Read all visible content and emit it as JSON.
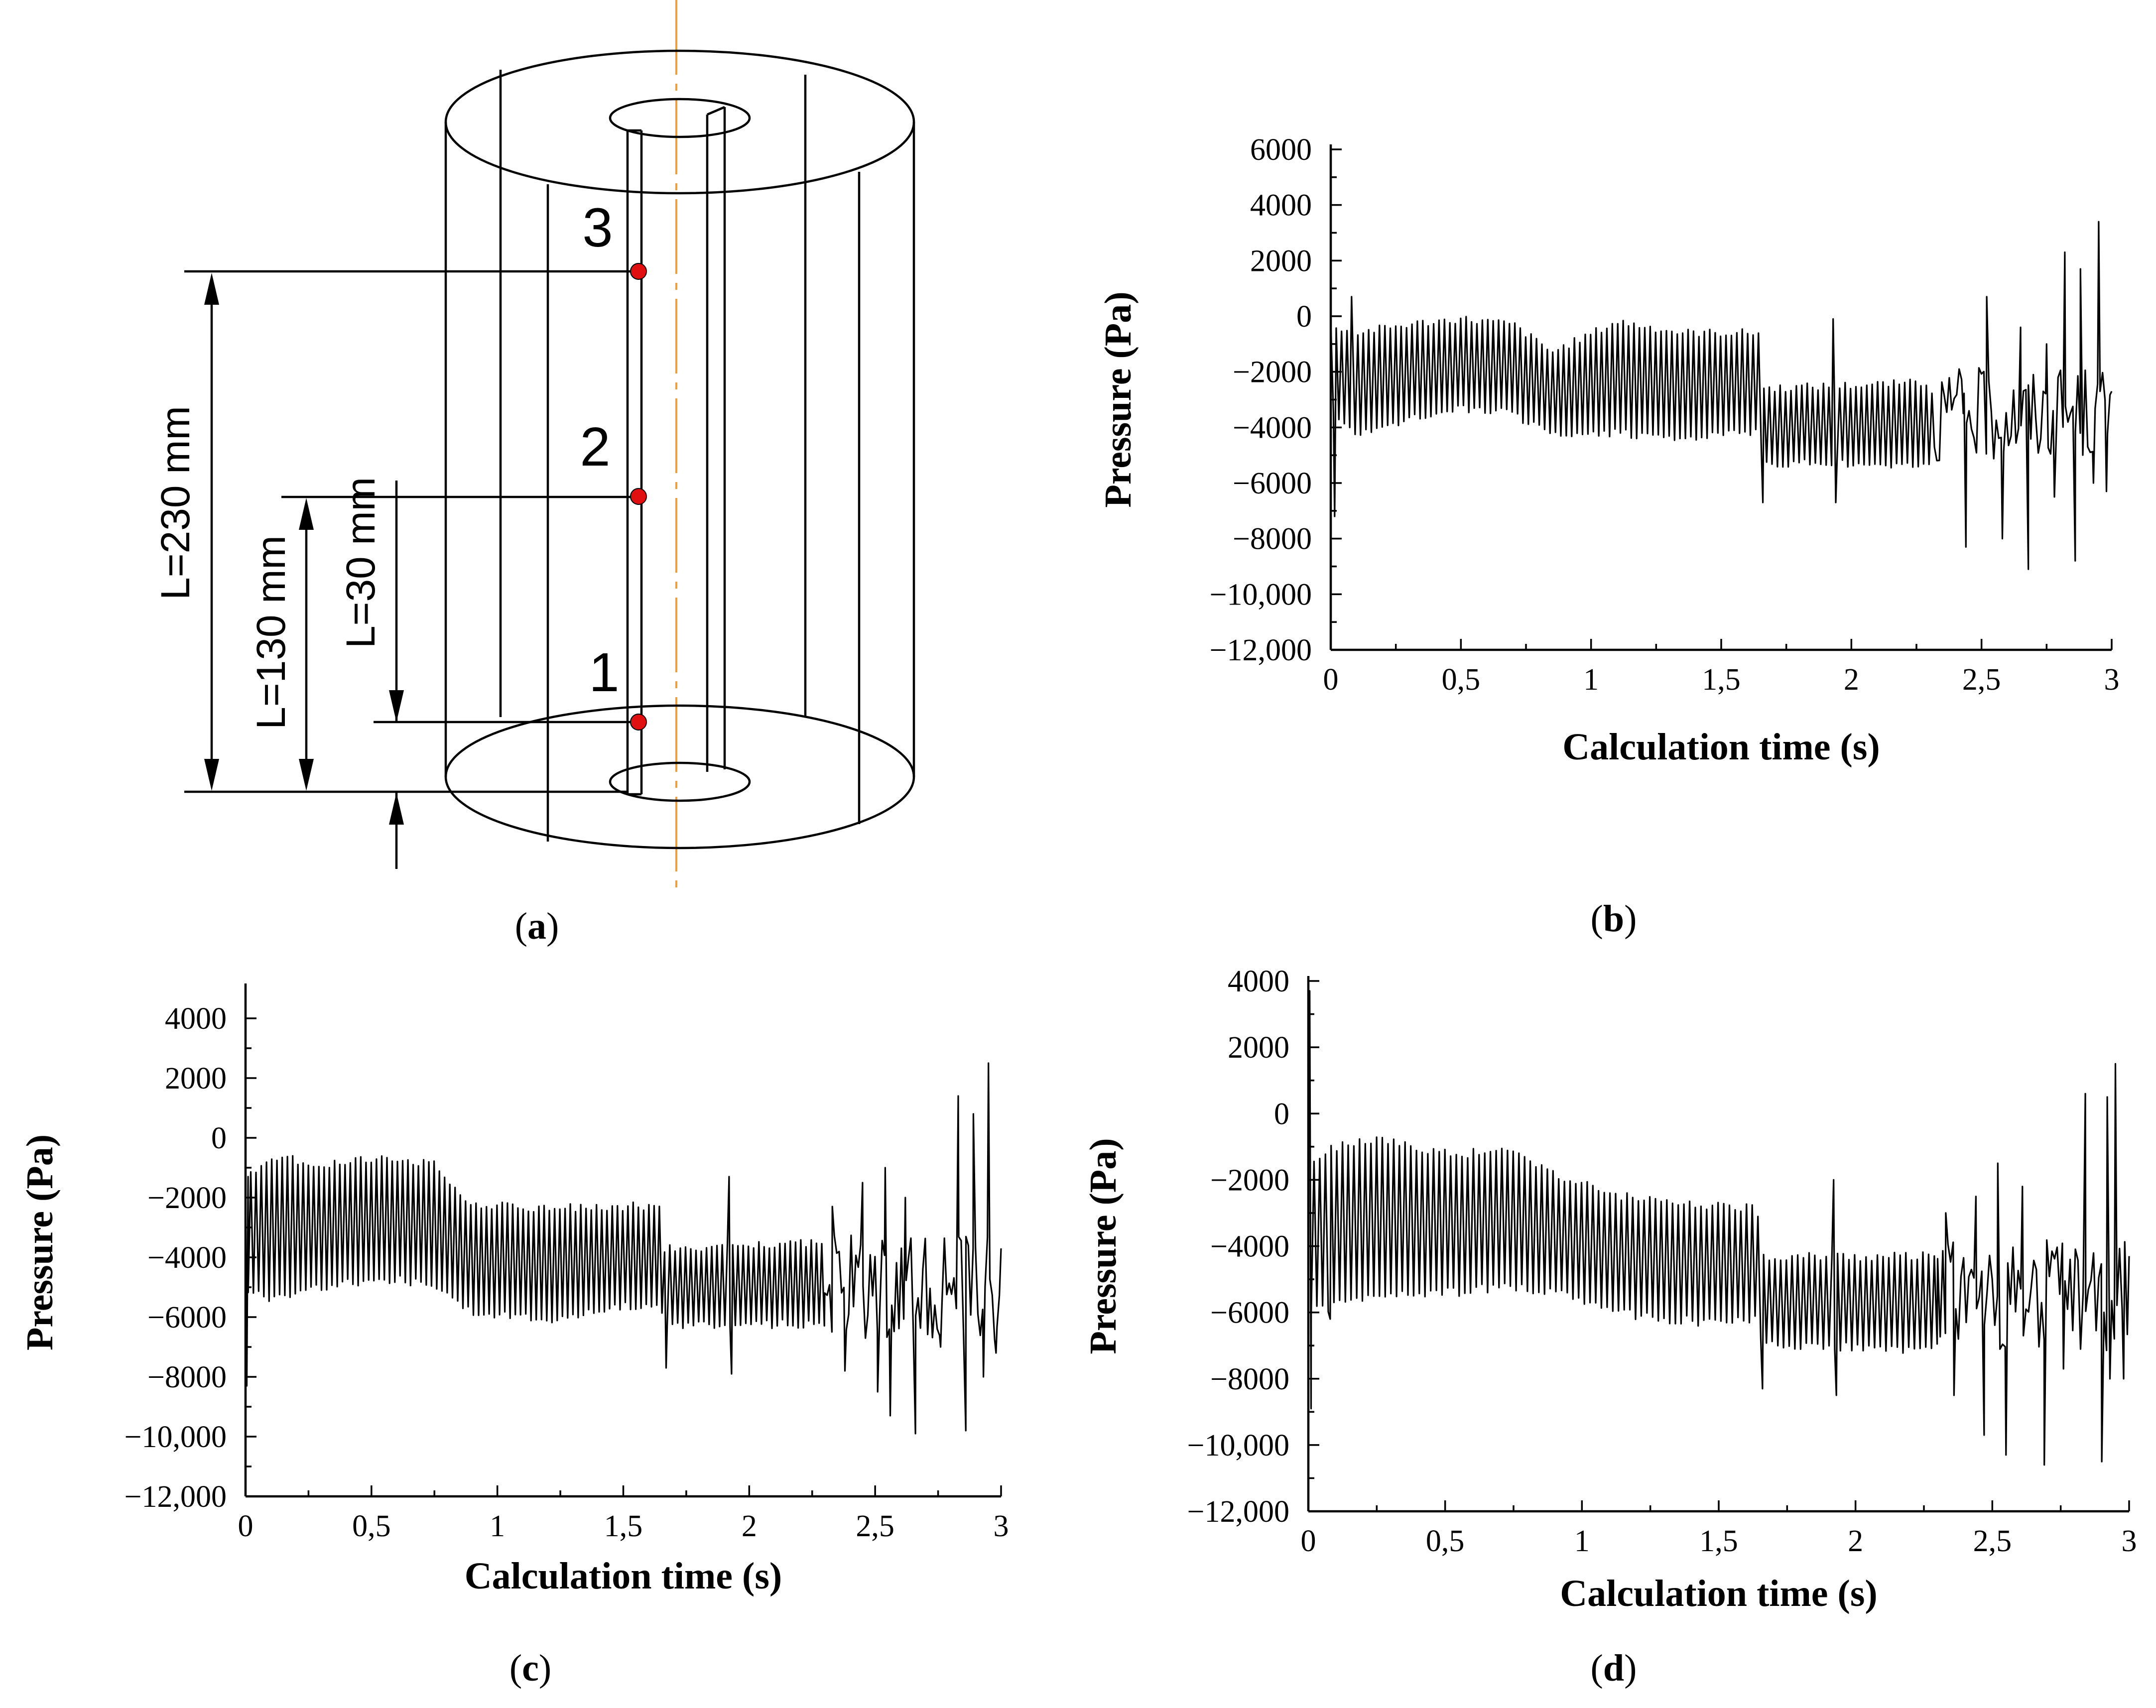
{
  "figure_a": {
    "caption_open": "(",
    "caption_letter": "a",
    "caption_close": ")",
    "point_labels": [
      "1",
      "2",
      "3"
    ],
    "dimension_labels": [
      "L=230 mm",
      "L=130 mm",
      "L=30 mm"
    ],
    "point_color": "#e01010",
    "axis_color": "#e8a040"
  },
  "chart_data": [
    {
      "id": "b",
      "type": "line",
      "caption": "b",
      "xlabel": "Calculation  time (s)",
      "ylabel": "Pressure (Pa)",
      "xlim": [
        0,
        3
      ],
      "ylim": [
        -12000,
        6000
      ],
      "xticks": [
        0,
        0.5,
        1,
        1.5,
        2,
        2.5,
        3
      ],
      "xticklabels": [
        "0",
        "0,5",
        "1",
        "1,5",
        "2",
        "2,5",
        "3"
      ],
      "yticks": [
        -12000,
        -10000,
        -8000,
        -6000,
        -4000,
        -2000,
        0,
        2000,
        4000,
        6000
      ],
      "yticklabels": [
        "−12,000",
        "−10,000",
        "−8000",
        "−6000",
        "−4000",
        "−2000",
        "0",
        "2000",
        "4000",
        "6000"
      ],
      "envelope": [
        {
          "t": 0.0,
          "hi": -300,
          "lo": -3500
        },
        {
          "t": 0.1,
          "hi": -600,
          "lo": -4300
        },
        {
          "t": 0.3,
          "hi": -300,
          "lo": -3700
        },
        {
          "t": 0.5,
          "hi": -100,
          "lo": -3300
        },
        {
          "t": 0.7,
          "hi": -300,
          "lo": -3500
        },
        {
          "t": 0.85,
          "hi": -1300,
          "lo": -4300
        },
        {
          "t": 1.1,
          "hi": -200,
          "lo": -4200
        },
        {
          "t": 1.35,
          "hi": -600,
          "lo": -4400
        },
        {
          "t": 1.65,
          "hi": -600,
          "lo": -4100
        },
        {
          "t": 1.66,
          "hi": -2600,
          "lo": -5300
        },
        {
          "t": 2.3,
          "hi": -2400,
          "lo": -5300
        }
      ],
      "noise_start": 2.3,
      "noise_range": [
        -5200,
        -1800
      ],
      "spikes": [
        {
          "t": 0.015,
          "v": -7200
        },
        {
          "t": 0.08,
          "v": 700
        },
        {
          "t": 1.66,
          "v": -6700
        },
        {
          "t": 1.93,
          "v": -100
        },
        {
          "t": 1.94,
          "v": -6700
        },
        {
          "t": 2.43,
          "v": -3500
        },
        {
          "t": 2.44,
          "v": -8300
        },
        {
          "t": 2.52,
          "v": 700
        },
        {
          "t": 2.58,
          "v": -8000
        },
        {
          "t": 2.65,
          "v": -400
        },
        {
          "t": 2.68,
          "v": -9100
        },
        {
          "t": 2.75,
          "v": -1000
        },
        {
          "t": 2.78,
          "v": -6500
        },
        {
          "t": 2.82,
          "v": 2300
        },
        {
          "t": 2.86,
          "v": -8800
        },
        {
          "t": 2.88,
          "v": 1700
        },
        {
          "t": 2.93,
          "v": -6000
        },
        {
          "t": 2.95,
          "v": 3400
        },
        {
          "t": 2.98,
          "v": -6300
        },
        {
          "t": 3.0,
          "v": -2700
        }
      ]
    },
    {
      "id": "c",
      "type": "line",
      "caption": "c",
      "xlabel": "Calculation  time (s)",
      "ylabel": "Pressure (Pa)",
      "xlim": [
        0,
        3
      ],
      "ylim": [
        -12000,
        5000
      ],
      "xticks": [
        0,
        0.5,
        1,
        1.5,
        2,
        2.5,
        3
      ],
      "xticklabels": [
        "0",
        "0,5",
        "1",
        "1,5",
        "2",
        "2,5",
        "3"
      ],
      "yticks": [
        -12000,
        -10000,
        -8000,
        -6000,
        -4000,
        -2000,
        0,
        2000,
        4000
      ],
      "yticklabels": [
        "−12,000",
        "−10,000",
        "−8000",
        "−6000",
        "−4000",
        "−2000",
        "0",
        "2000",
        "4000"
      ],
      "envelope": [
        {
          "t": 0.0,
          "hi": -1400,
          "lo": -5000
        },
        {
          "t": 0.1,
          "hi": -600,
          "lo": -5400
        },
        {
          "t": 0.3,
          "hi": -900,
          "lo": -5000
        },
        {
          "t": 0.55,
          "hi": -700,
          "lo": -4700
        },
        {
          "t": 0.75,
          "hi": -900,
          "lo": -4900
        },
        {
          "t": 0.9,
          "hi": -2200,
          "lo": -5800
        },
        {
          "t": 1.2,
          "hi": -2400,
          "lo": -6100
        },
        {
          "t": 1.45,
          "hi": -2300,
          "lo": -5700
        },
        {
          "t": 1.65,
          "hi": -2300,
          "lo": -5500
        },
        {
          "t": 1.66,
          "hi": -3700,
          "lo": -6300
        },
        {
          "t": 2.3,
          "hi": -3500,
          "lo": -6200
        }
      ],
      "noise_start": 2.3,
      "noise_range": [
        -6800,
        -3200
      ],
      "spikes": [
        {
          "t": 0.005,
          "v": -8300
        },
        {
          "t": 0.01,
          "v": -1300
        },
        {
          "t": 1.67,
          "v": -7700
        },
        {
          "t": 1.92,
          "v": -1300
        },
        {
          "t": 1.93,
          "v": -7900
        },
        {
          "t": 2.33,
          "v": -2300
        },
        {
          "t": 2.38,
          "v": -7800
        },
        {
          "t": 2.45,
          "v": -1500
        },
        {
          "t": 2.51,
          "v": -8500
        },
        {
          "t": 2.54,
          "v": -1000
        },
        {
          "t": 2.56,
          "v": -9300
        },
        {
          "t": 2.62,
          "v": -2000
        },
        {
          "t": 2.66,
          "v": -9900
        },
        {
          "t": 2.76,
          "v": -7000
        },
        {
          "t": 2.83,
          "v": 1400
        },
        {
          "t": 2.86,
          "v": -9800
        },
        {
          "t": 2.89,
          "v": 800
        },
        {
          "t": 2.93,
          "v": -8000
        },
        {
          "t": 2.95,
          "v": 2500
        },
        {
          "t": 2.98,
          "v": -7200
        },
        {
          "t": 3.0,
          "v": -3700
        }
      ]
    },
    {
      "id": "d",
      "type": "line",
      "caption": "d",
      "xlabel": "Calculation  time (s)",
      "ylabel": "Pressure (Pa)",
      "xlim": [
        0,
        3
      ],
      "ylim": [
        -12000,
        4000
      ],
      "xticks": [
        0,
        0.5,
        1,
        1.5,
        2,
        2.5,
        3
      ],
      "xticklabels": [
        "0",
        "0,5",
        "1",
        "1,5",
        "2",
        "2,5",
        "3"
      ],
      "yticks": [
        -12000,
        -10000,
        -8000,
        -6000,
        -4000,
        -2000,
        0,
        2000,
        4000
      ],
      "yticklabels": [
        "−12,000",
        "−10,000",
        "−8000",
        "−6000",
        "−4000",
        "−2000",
        "0",
        "2000",
        "4000"
      ],
      "envelope": [
        {
          "t": 0.0,
          "hi": -1500,
          "lo": -6000
        },
        {
          "t": 0.1,
          "hi": -1000,
          "lo": -5800
        },
        {
          "t": 0.25,
          "hi": -800,
          "lo": -5500
        },
        {
          "t": 0.5,
          "hi": -1200,
          "lo": -5400
        },
        {
          "t": 0.75,
          "hi": -1200,
          "lo": -5200
        },
        {
          "t": 0.95,
          "hi": -2000,
          "lo": -5500
        },
        {
          "t": 1.2,
          "hi": -2600,
          "lo": -6100
        },
        {
          "t": 1.45,
          "hi": -2800,
          "lo": -6300
        },
        {
          "t": 1.64,
          "hi": -2900,
          "lo": -6200
        },
        {
          "t": 1.66,
          "hi": -4300,
          "lo": -7000
        },
        {
          "t": 2.3,
          "hi": -4300,
          "lo": -7100
        }
      ],
      "noise_start": 2.3,
      "noise_range": [
        -7200,
        -3800
      ],
      "spikes": [
        {
          "t": 0.005,
          "v": 3700
        },
        {
          "t": 0.01,
          "v": -8900
        },
        {
          "t": 0.08,
          "v": -6200
        },
        {
          "t": 1.66,
          "v": -8300
        },
        {
          "t": 1.92,
          "v": -2000
        },
        {
          "t": 1.93,
          "v": -8500
        },
        {
          "t": 2.33,
          "v": -3000
        },
        {
          "t": 2.36,
          "v": -8500
        },
        {
          "t": 2.44,
          "v": -2500
        },
        {
          "t": 2.47,
          "v": -9700
        },
        {
          "t": 2.52,
          "v": -1500
        },
        {
          "t": 2.55,
          "v": -10300
        },
        {
          "t": 2.61,
          "v": -2200
        },
        {
          "t": 2.69,
          "v": -10600
        },
        {
          "t": 2.76,
          "v": -7700
        },
        {
          "t": 2.84,
          "v": 600
        },
        {
          "t": 2.9,
          "v": -10500
        },
        {
          "t": 2.92,
          "v": 500
        },
        {
          "t": 2.93,
          "v": -8000
        },
        {
          "t": 2.95,
          "v": 1500
        },
        {
          "t": 2.98,
          "v": -8000
        },
        {
          "t": 3.0,
          "v": -4300
        }
      ]
    }
  ]
}
